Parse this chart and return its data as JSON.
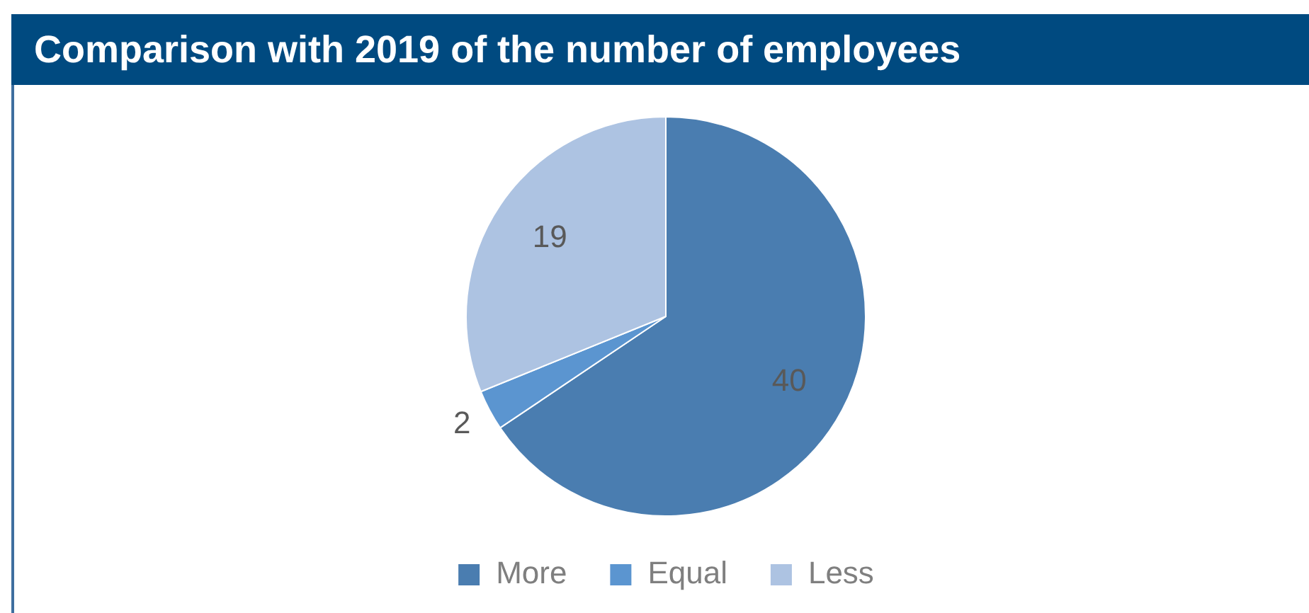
{
  "chart_data": {
    "type": "pie",
    "title": "Comparison with 2019 of the number of employees",
    "categories": [
      "More",
      "Equal",
      "Less"
    ],
    "values": [
      40,
      2,
      19
    ],
    "colors": [
      "#4a7db0",
      "#5b95d0",
      "#adc3e2"
    ],
    "data_labels": true,
    "legend": "bottom"
  }
}
